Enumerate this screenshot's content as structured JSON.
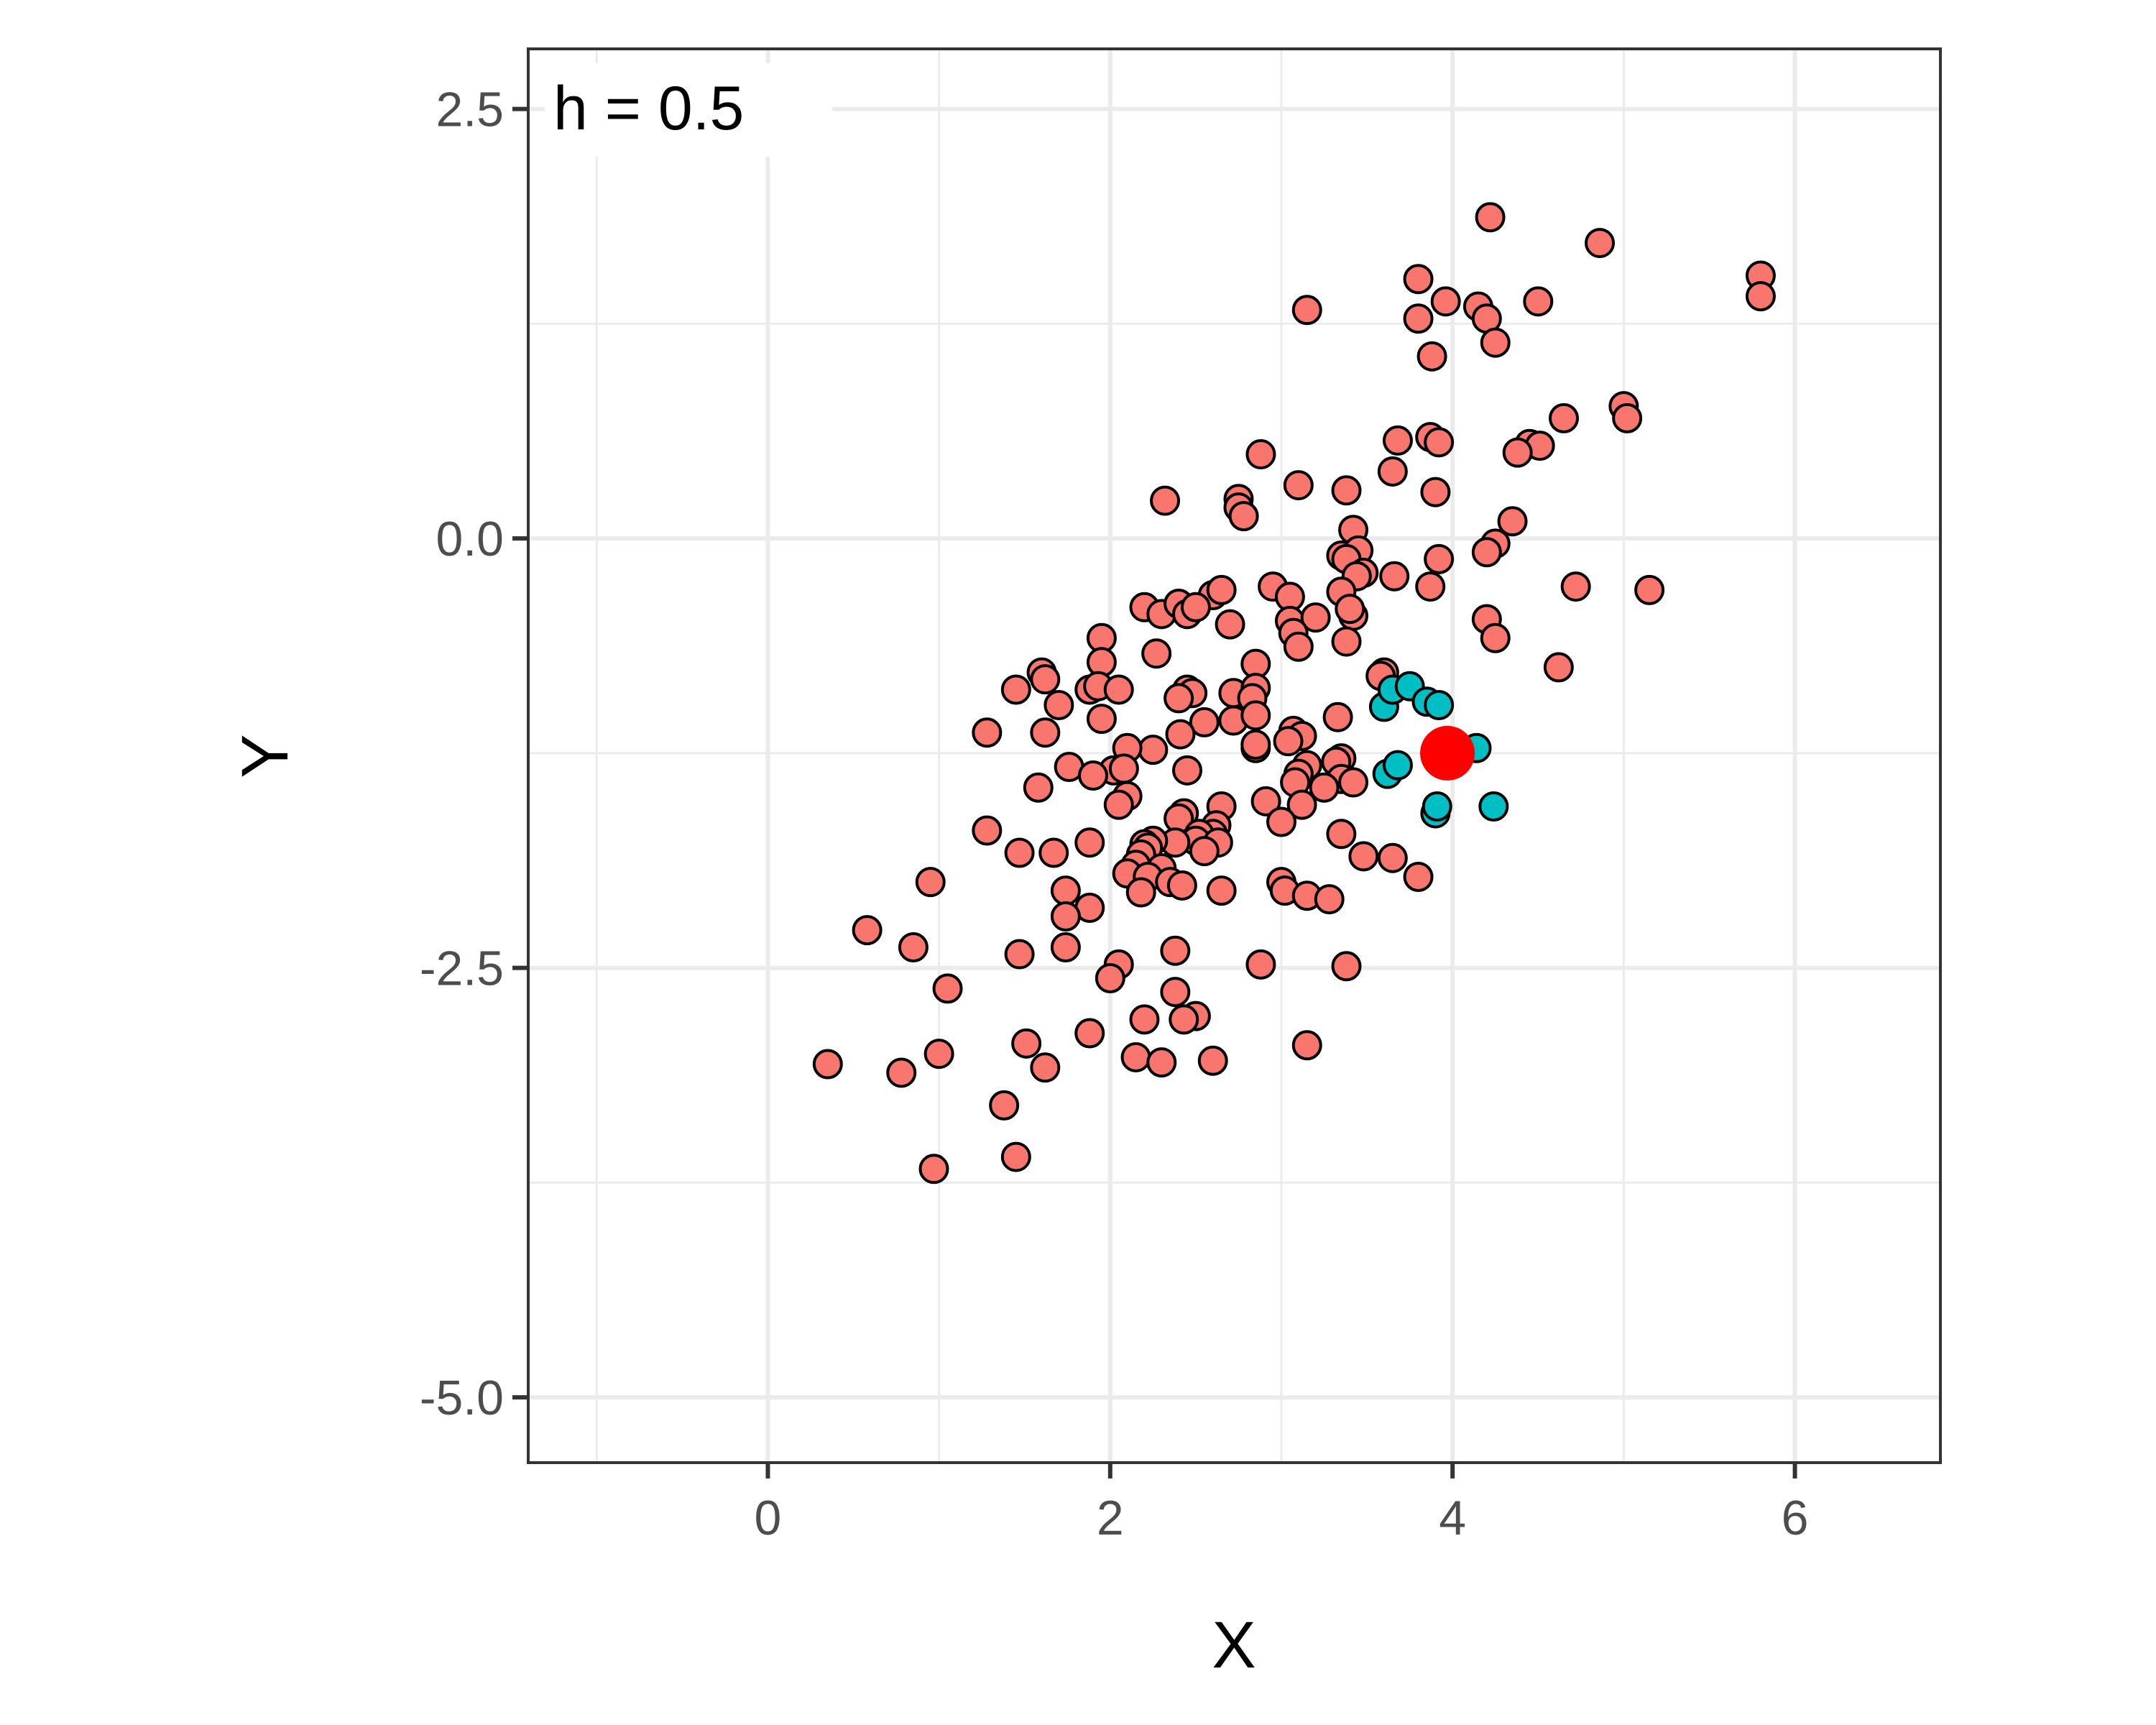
{
  "chart_data": {
    "type": "scatter",
    "title": "",
    "xlabel": "X",
    "ylabel": "Y",
    "annotation": "h = 0.5",
    "xlim": [
      -1.4,
      6.85
    ],
    "ylim": [
      -5.38,
      2.85
    ],
    "x_ticks": [
      0,
      2,
      4,
      6
    ],
    "x_tick_labels": [
      "0",
      "2",
      "4",
      "6"
    ],
    "y_ticks": [
      2.5,
      0.0,
      -2.5,
      -5.0
    ],
    "y_tick_labels": [
      "2.5",
      "0.0",
      "-2.5",
      "-5.0"
    ],
    "grid": true,
    "legend": "none",
    "colors": {
      "other": "#f8766d",
      "neighbor": "#00bfc4",
      "query": "#ff0000",
      "outline": "#000000",
      "grid": "#ebebeb",
      "panel_border": "#333333"
    },
    "series": [
      {
        "role": "other",
        "points": [
          [
            4.22,
            1.87
          ],
          [
            4.86,
            1.72
          ],
          [
            5.8,
            1.53
          ],
          [
            5.8,
            1.41
          ],
          [
            3.8,
            1.51
          ],
          [
            3.96,
            1.38
          ],
          [
            4.15,
            1.35
          ],
          [
            4.2,
            1.28
          ],
          [
            4.25,
            1.14
          ],
          [
            4.5,
            1.38
          ],
          [
            3.15,
            1.33
          ],
          [
            3.8,
            1.28
          ],
          [
            3.88,
            1.06
          ],
          [
            5.0,
            0.77
          ],
          [
            5.02,
            0.7
          ],
          [
            4.65,
            0.7
          ],
          [
            4.45,
            0.55
          ],
          [
            4.51,
            0.54
          ],
          [
            4.38,
            0.5
          ],
          [
            3.68,
            0.57
          ],
          [
            3.87,
            0.59
          ],
          [
            3.92,
            0.56
          ],
          [
            2.88,
            0.49
          ],
          [
            3.65,
            0.39
          ],
          [
            3.9,
            0.27
          ],
          [
            2.32,
            0.22
          ],
          [
            2.75,
            0.23
          ],
          [
            2.75,
            0.18
          ],
          [
            2.78,
            0.13
          ],
          [
            3.1,
            0.31
          ],
          [
            3.38,
            0.28
          ],
          [
            4.35,
            0.1
          ],
          [
            3.42,
            0.05
          ],
          [
            4.25,
            -0.03
          ],
          [
            4.2,
            -0.08
          ],
          [
            3.35,
            -0.1
          ],
          [
            3.45,
            -0.07
          ],
          [
            3.38,
            -0.12
          ],
          [
            3.92,
            -0.12
          ],
          [
            3.48,
            -0.2
          ],
          [
            3.66,
            -0.22
          ],
          [
            3.44,
            -0.22
          ],
          [
            4.72,
            -0.28
          ],
          [
            5.15,
            -0.3
          ],
          [
            3.87,
            -0.28
          ],
          [
            3.35,
            -0.31
          ],
          [
            2.95,
            -0.28
          ],
          [
            3.05,
            -0.34
          ],
          [
            2.6,
            -0.33
          ],
          [
            2.65,
            -0.3
          ],
          [
            2.2,
            -0.4
          ],
          [
            2.3,
            -0.44
          ],
          [
            2.4,
            -0.38
          ],
          [
            2.45,
            -0.44
          ],
          [
            2.5,
            -0.4
          ],
          [
            3.42,
            -0.45
          ],
          [
            3.05,
            -0.48
          ],
          [
            3.2,
            -0.46
          ],
          [
            3.4,
            -0.41
          ],
          [
            4.2,
            -0.47
          ],
          [
            2.7,
            -0.5
          ],
          [
            3.07,
            -0.55
          ],
          [
            4.25,
            -0.58
          ],
          [
            1.95,
            -0.58
          ],
          [
            3.38,
            -0.6
          ],
          [
            3.1,
            -0.63
          ],
          [
            2.27,
            -0.67
          ],
          [
            1.95,
            -0.72
          ],
          [
            1.6,
            -0.78
          ],
          [
            4.62,
            -0.75
          ],
          [
            3.6,
            -0.78
          ],
          [
            3.58,
            -0.8
          ],
          [
            2.85,
            -0.73
          ],
          [
            1.62,
            -0.82
          ],
          [
            1.45,
            -0.88
          ],
          [
            1.88,
            -0.88
          ],
          [
            1.93,
            -0.86
          ],
          [
            2.05,
            -0.88
          ],
          [
            2.45,
            -0.88
          ],
          [
            2.48,
            -0.9
          ],
          [
            2.72,
            -0.9
          ],
          [
            2.85,
            -0.87
          ],
          [
            2.4,
            -0.93
          ],
          [
            2.83,
            -0.93
          ],
          [
            1.7,
            -0.97
          ],
          [
            3.33,
            -1.04
          ],
          [
            1.95,
            -1.05
          ],
          [
            2.55,
            -1.07
          ],
          [
            2.72,
            -1.06
          ],
          [
            2.85,
            -1.03
          ],
          [
            3.07,
            -1.12
          ],
          [
            3.12,
            -1.15
          ],
          [
            3.04,
            -1.18
          ],
          [
            1.62,
            -1.13
          ],
          [
            1.28,
            -1.13
          ],
          [
            2.41,
            -1.14
          ],
          [
            2.85,
            -1.22
          ],
          [
            2.85,
            -1.2
          ],
          [
            2.25,
            -1.23
          ],
          [
            2.1,
            -1.22
          ],
          [
            3.35,
            -1.28
          ],
          [
            3.15,
            -1.32
          ],
          [
            3.32,
            -1.3
          ],
          [
            1.76,
            -1.33
          ],
          [
            2.02,
            -1.35
          ],
          [
            2.08,
            -1.34
          ],
          [
            2.45,
            -1.35
          ],
          [
            3.1,
            -1.37
          ],
          [
            3.35,
            -1.4
          ],
          [
            3.42,
            -1.42
          ],
          [
            3.25,
            -1.45
          ],
          [
            1.9,
            -1.38
          ],
          [
            3.08,
            -1.42
          ],
          [
            1.58,
            -1.45
          ],
          [
            2.1,
            -1.5
          ],
          [
            2.05,
            -1.55
          ],
          [
            2.91,
            -1.53
          ],
          [
            3.12,
            -1.55
          ],
          [
            2.65,
            -1.56
          ],
          [
            2.43,
            -1.6
          ],
          [
            2.4,
            -1.63
          ],
          [
            3.0,
            -1.65
          ],
          [
            2.62,
            -1.67
          ],
          [
            1.28,
            -1.7
          ],
          [
            2.6,
            -1.72
          ],
          [
            2.52,
            -1.72
          ],
          [
            2.5,
            -1.76
          ],
          [
            2.38,
            -1.77
          ],
          [
            2.63,
            -1.77
          ],
          [
            3.35,
            -1.72
          ],
          [
            2.25,
            -1.76
          ],
          [
            2.2,
            -1.78
          ],
          [
            1.88,
            -1.77
          ],
          [
            2.22,
            -1.8
          ],
          [
            1.47,
            -1.83
          ],
          [
            1.67,
            -1.83
          ],
          [
            3.48,
            -1.85
          ],
          [
            3.65,
            -1.86
          ],
          [
            2.55,
            -1.82
          ],
          [
            2.18,
            -1.84
          ],
          [
            2.3,
            -1.92
          ],
          [
            2.15,
            -1.9
          ],
          [
            2.1,
            -1.95
          ],
          [
            2.22,
            -1.97
          ],
          [
            3.8,
            -1.97
          ],
          [
            2.35,
            -2.0
          ],
          [
            2.42,
            -2.02
          ],
          [
            3.0,
            -2.0
          ],
          [
            2.18,
            -2.06
          ],
          [
            1.74,
            -2.05
          ],
          [
            2.65,
            -2.05
          ],
          [
            3.02,
            -2.05
          ],
          [
            3.15,
            -2.08
          ],
          [
            3.28,
            -2.1
          ],
          [
            0.95,
            -2.0
          ],
          [
            1.88,
            -2.15
          ],
          [
            1.74,
            -2.2
          ],
          [
            0.58,
            -2.28
          ],
          [
            0.85,
            -2.38
          ],
          [
            1.74,
            -2.38
          ],
          [
            1.47,
            -2.42
          ],
          [
            2.38,
            -2.4
          ],
          [
            2.05,
            -2.48
          ],
          [
            2.88,
            -2.48
          ],
          [
            3.38,
            -2.49
          ],
          [
            2.0,
            -2.56
          ],
          [
            1.05,
            -2.62
          ],
          [
            2.38,
            -2.64
          ],
          [
            2.5,
            -2.78
          ],
          [
            2.43,
            -2.8
          ],
          [
            2.2,
            -2.8
          ],
          [
            1.88,
            -2.88
          ],
          [
            1.51,
            -2.94
          ],
          [
            3.15,
            -2.95
          ],
          [
            1.0,
            -3.0
          ],
          [
            2.15,
            -3.02
          ],
          [
            2.3,
            -3.05
          ],
          [
            2.6,
            -3.04
          ],
          [
            0.35,
            -3.06
          ],
          [
            0.78,
            -3.11
          ],
          [
            1.62,
            -3.08
          ],
          [
            1.38,
            -3.3
          ],
          [
            1.45,
            -3.6
          ],
          [
            0.97,
            -3.67
          ]
        ]
      },
      {
        "role": "neighbor",
        "points": [
          [
            3.6,
            -0.98
          ],
          [
            3.65,
            -0.88
          ],
          [
            3.75,
            -0.86
          ],
          [
            3.85,
            -0.95
          ],
          [
            3.92,
            -0.97
          ],
          [
            4.14,
            -1.22
          ],
          [
            3.62,
            -1.37
          ],
          [
            3.68,
            -1.32
          ],
          [
            3.9,
            -1.6
          ],
          [
            3.91,
            -1.56
          ],
          [
            4.24,
            -1.56
          ]
        ]
      },
      {
        "role": "query",
        "points": [
          [
            3.97,
            -1.25
          ]
        ]
      }
    ]
  }
}
